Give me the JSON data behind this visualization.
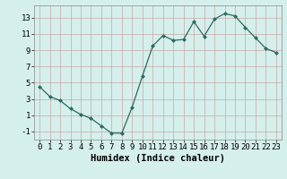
{
  "x": [
    0,
    1,
    2,
    3,
    4,
    5,
    6,
    7,
    8,
    9,
    10,
    11,
    12,
    13,
    14,
    15,
    16,
    17,
    18,
    19,
    20,
    21,
    22,
    23
  ],
  "y": [
    4.5,
    3.3,
    2.8,
    1.8,
    1.1,
    0.6,
    -0.3,
    -1.2,
    -1.2,
    2.0,
    5.8,
    9.5,
    10.8,
    10.2,
    10.3,
    12.5,
    10.7,
    12.8,
    13.5,
    13.2,
    11.8,
    10.5,
    9.2,
    8.7
  ],
  "xlabel": "Humidex (Indice chaleur)",
  "xlim": [
    -0.5,
    23.5
  ],
  "ylim": [
    -2,
    14.5
  ],
  "yticks": [
    -1,
    1,
    3,
    5,
    7,
    9,
    11,
    13
  ],
  "xticks": [
    0,
    1,
    2,
    3,
    4,
    5,
    6,
    7,
    8,
    9,
    10,
    11,
    12,
    13,
    14,
    15,
    16,
    17,
    18,
    19,
    20,
    21,
    22,
    23
  ],
  "line_color": "#2a6b60",
  "marker_color": "#2a6b60",
  "bg_color": "#d5efec",
  "grid_color": "#c8dbd8",
  "tick_fontsize": 6.5,
  "xlabel_fontsize": 7.5
}
